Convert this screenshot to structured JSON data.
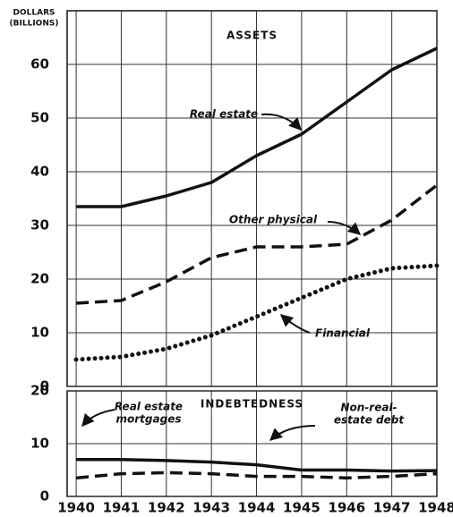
{
  "chart_data": [
    {
      "type": "line",
      "title": "ASSETS",
      "ylabel": [
        "DOLLARS",
        "(BILLIONS)"
      ],
      "x": [
        1940,
        1941,
        1942,
        1943,
        1944,
        1945,
        1946,
        1947,
        1948
      ],
      "xlim": [
        1939.8,
        1948
      ],
      "xticks": [
        1940,
        1941,
        1942,
        1943,
        1944,
        1945,
        1946,
        1947,
        1948
      ],
      "ylim": [
        0,
        70
      ],
      "yticks": [
        0,
        10,
        20,
        30,
        40,
        50,
        60
      ],
      "grid": true,
      "series": [
        {
          "name": [
            "Real estate"
          ],
          "color": "#111111",
          "style": "solid",
          "values": [
            33.5,
            33.5,
            35.5,
            38,
            43,
            47,
            53,
            59,
            63
          ]
        },
        {
          "name": [
            "Other physical"
          ],
          "color": "#111111",
          "style": "dashed",
          "values": [
            15.5,
            16,
            19.5,
            24,
            26,
            26,
            26.5,
            31,
            37.5
          ]
        },
        {
          "name": [
            "Financial"
          ],
          "color": "#111111",
          "style": "dotted",
          "values": [
            5,
            5.5,
            7,
            9.5,
            13,
            16.5,
            20,
            22,
            22.5
          ]
        }
      ]
    },
    {
      "type": "line",
      "title": "INDEBTEDNESS",
      "x": [
        1940,
        1941,
        1942,
        1943,
        1944,
        1945,
        1946,
        1947,
        1948
      ],
      "xlim": [
        1939.8,
        1948
      ],
      "xticks": [
        1940,
        1941,
        1942,
        1943,
        1944,
        1945,
        1946,
        1947,
        1948
      ],
      "ylim": [
        0,
        20
      ],
      "yticks": [
        0,
        10,
        20
      ],
      "grid": true,
      "series": [
        {
          "name": [
            "Real estate",
            "mortgages"
          ],
          "color": "#111111",
          "style": "solid",
          "values": [
            7,
            7,
            6.8,
            6.5,
            6,
            5,
            5,
            4.8,
            4.9
          ]
        },
        {
          "name": [
            "Non-real-",
            "estate debt"
          ],
          "color": "#111111",
          "style": "dashed",
          "values": [
            3.5,
            4.3,
            4.5,
            4.3,
            3.8,
            3.8,
            3.5,
            3.8,
            4.3
          ]
        }
      ]
    }
  ]
}
